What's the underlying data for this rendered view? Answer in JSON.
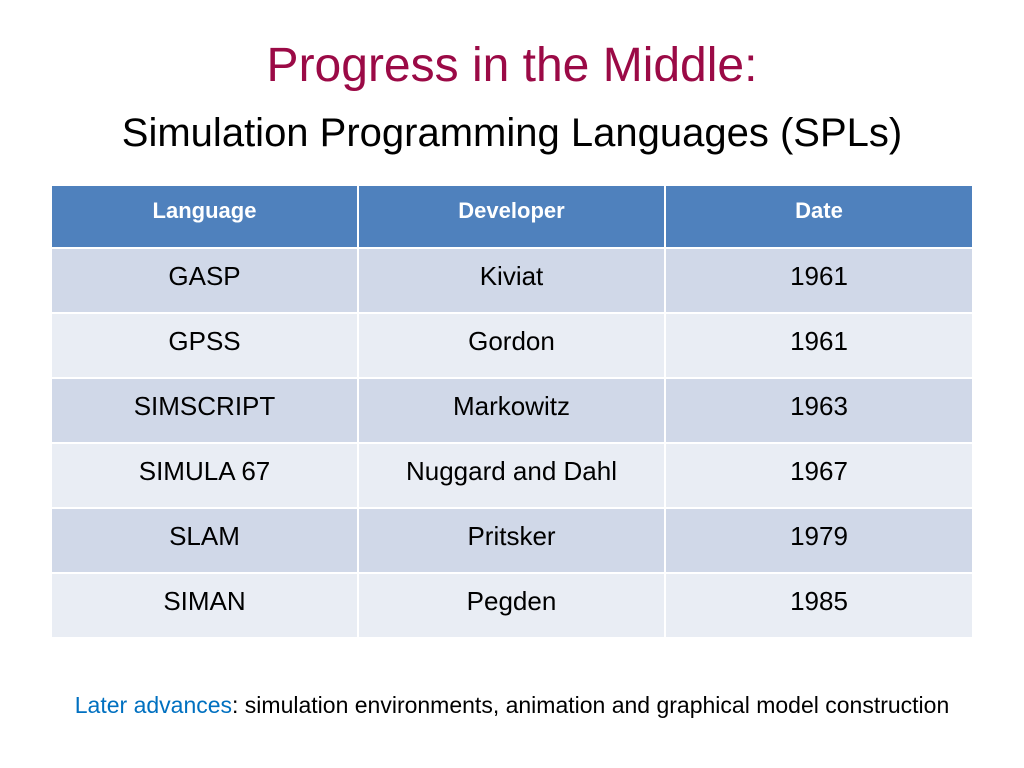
{
  "title": "Progress in the Middle:",
  "subtitle": "Simulation Programming Languages (SPLs)",
  "table": {
    "headers": [
      "Language",
      "Developer",
      "Date"
    ],
    "rows": [
      [
        "GASP",
        "Kiviat",
        "1961"
      ],
      [
        "GPSS",
        "Gordon",
        "1961"
      ],
      [
        "SIMSCRIPT",
        "Markowitz",
        "1963"
      ],
      [
        "SIMULA 67",
        "Nuggard and Dahl",
        "1967"
      ],
      [
        "SLAM",
        "Pritsker",
        "1979"
      ],
      [
        "SIMAN",
        "Pegden",
        "1985"
      ]
    ]
  },
  "footer": {
    "highlight": "Later advances",
    "text": ": simulation environments, animation and graphical model construction"
  },
  "colors": {
    "title": "#9B0A46",
    "header": "#4F81BD",
    "row_odd": "#D0D8E8",
    "row_even": "#E9EDF4",
    "highlight": "#0070C0"
  }
}
